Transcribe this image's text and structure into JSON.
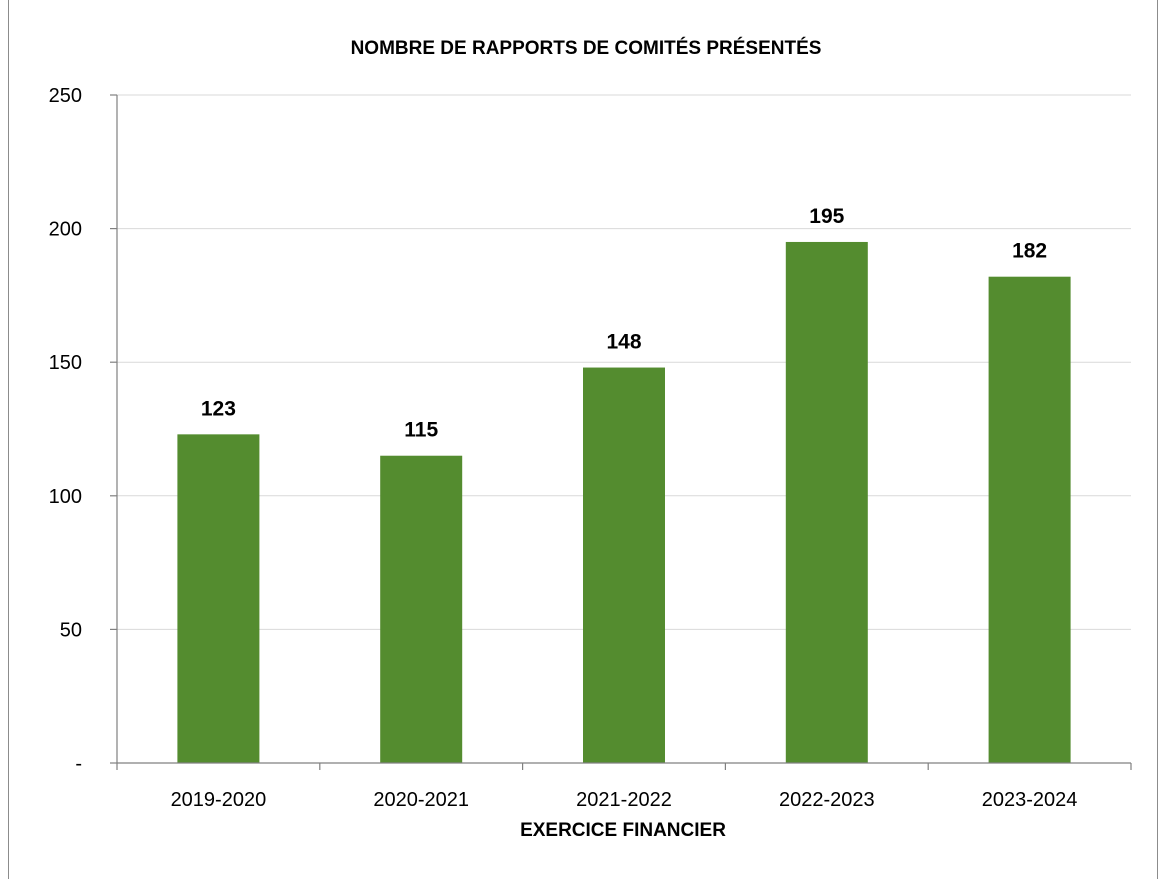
{
  "chart_data": {
    "type": "bar",
    "title": "NOMBRE DE RAPPORTS DE COMITÉS PRÉSENTÉS",
    "xlabel": "EXERCICE FINANCIER",
    "ylabel": "",
    "categories": [
      "2019-2020",
      "2020-2021",
      "2021-2022",
      "2022-2023",
      "2023-2024"
    ],
    "values": [
      123,
      115,
      148,
      195,
      182
    ],
    "data_labels": [
      "123",
      "115",
      "148",
      "195",
      "182"
    ],
    "ylim": [
      0,
      250
    ],
    "yticks": [
      0,
      50,
      100,
      150,
      200,
      250
    ],
    "ytick_labels": [
      "-",
      "50",
      "100",
      "150",
      "200",
      "250"
    ],
    "grid": true,
    "legend": "none",
    "bar_color": "#548c2f"
  }
}
